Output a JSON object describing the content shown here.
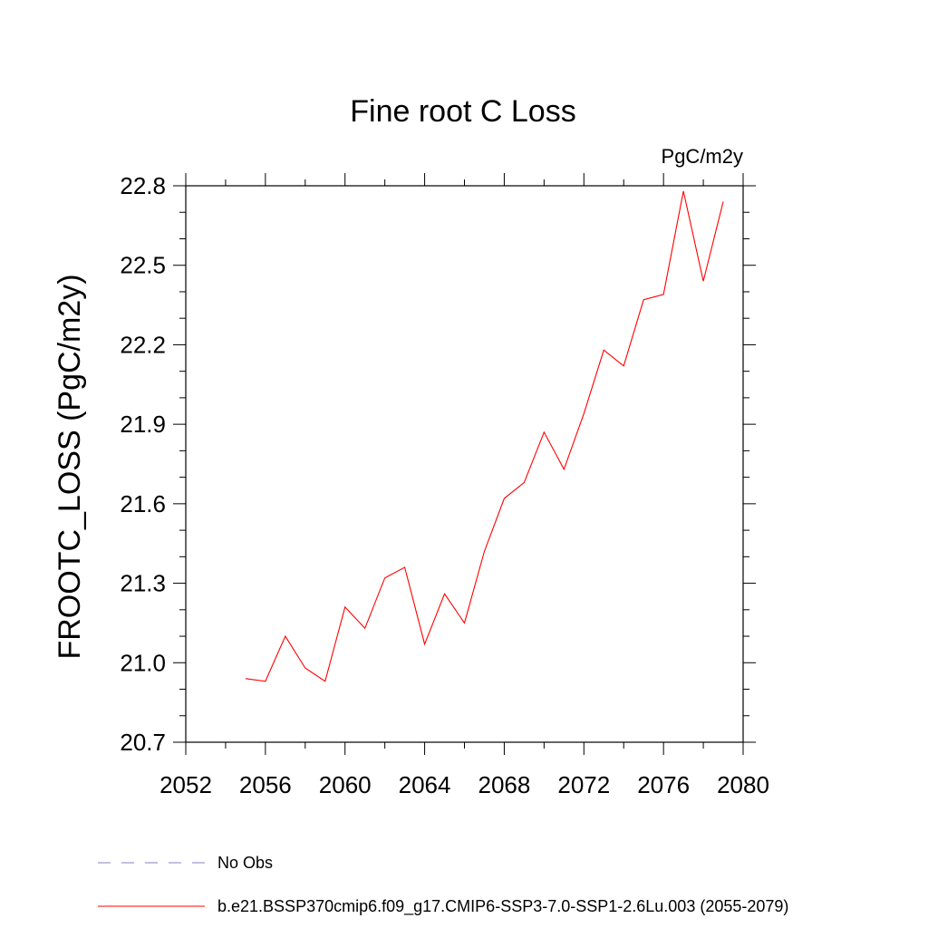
{
  "chart_data": {
    "type": "line",
    "title": "Fine root C Loss",
    "units_label": "PgC/m2y",
    "xlabel": "",
    "ylabel": "FROOTC_LOSS  (PgC/m2y)",
    "xlim": [
      2052,
      2080
    ],
    "ylim": [
      20.7,
      22.8
    ],
    "x_ticks": [
      2052,
      2056,
      2060,
      2064,
      2068,
      2072,
      2076,
      2080
    ],
    "y_ticks": [
      20.7,
      21.0,
      21.3,
      21.6,
      21.9,
      22.2,
      22.5,
      22.8
    ],
    "x_tick_labels": [
      "2052",
      "2056",
      "2060",
      "2064",
      "2068",
      "2072",
      "2076",
      "2080"
    ],
    "y_tick_labels": [
      "20.7",
      "21.0",
      "21.3",
      "21.6",
      "21.9",
      "22.2",
      "22.5",
      "22.8"
    ],
    "grid": false,
    "legend_position": "bottom",
    "series": [
      {
        "name": "No Obs",
        "color": "#8a7fc6",
        "style": "dashed",
        "x": [],
        "values": []
      },
      {
        "name": "b.e21.BSSP370cmip6.f09_g17.CMIP6-SSP3-7.0-SSP1-2.6Lu.003 (2055-2079)",
        "color": "#ff0000",
        "style": "solid",
        "x": [
          2055,
          2056,
          2057,
          2058,
          2059,
          2060,
          2061,
          2062,
          2063,
          2064,
          2065,
          2066,
          2067,
          2068,
          2069,
          2070,
          2071,
          2072,
          2073,
          2074,
          2075,
          2076,
          2077,
          2078,
          2079
        ],
        "values": [
          20.94,
          20.93,
          21.1,
          20.98,
          20.93,
          21.21,
          21.13,
          21.32,
          21.36,
          21.07,
          21.26,
          21.15,
          21.42,
          21.62,
          21.68,
          21.87,
          21.73,
          21.94,
          22.18,
          22.12,
          22.37,
          22.39,
          22.78,
          22.44,
          22.74
        ]
      }
    ]
  }
}
